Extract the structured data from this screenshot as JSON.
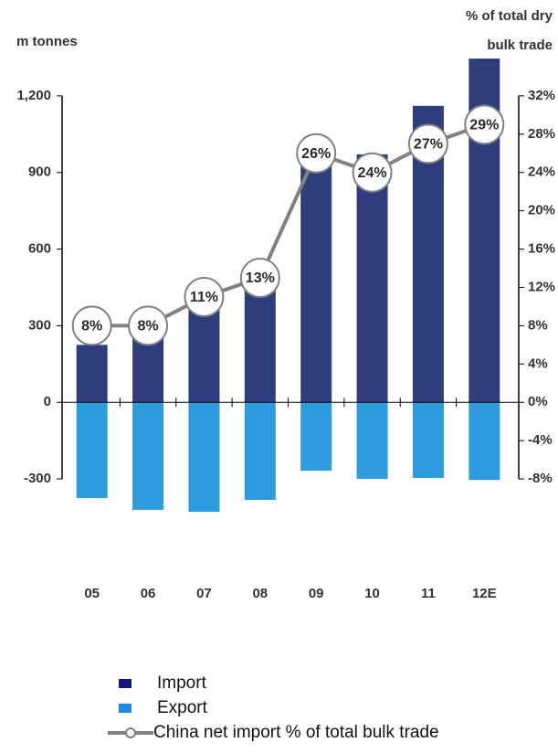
{
  "chart_data": {
    "type": "bar-line",
    "y_label": "m tonnes",
    "y2_label": [
      "% of total dry",
      "bulk trade"
    ],
    "categories": [
      "05",
      "06",
      "07",
      "08",
      "09",
      "10",
      "11",
      "12E"
    ],
    "series": [
      {
        "name": "Import",
        "color": "#2e3d7c",
        "legend_color": "#14147a",
        "values": [
          225,
          307,
          432,
          504,
          979,
          971,
          1161,
          1346
        ]
      },
      {
        "name": "Export",
        "color": "#2e9bdc",
        "legend_color": "#1e88e5",
        "values": [
          -375,
          -421,
          -429,
          -382,
          -268,
          -300,
          -296,
          -304
        ]
      },
      {
        "name": "China net import % of total bulk trade",
        "color": "#808080",
        "axis": "y2",
        "values": [
          8,
          8,
          11,
          13,
          26,
          24,
          27,
          29
        ],
        "value_labels": [
          "8%",
          "8%",
          "11%",
          "13%",
          "26%",
          "24%",
          "27%",
          "29%"
        ]
      }
    ],
    "ylim": [
      -450,
      1350
    ],
    "yticks": [
      -300,
      0,
      300,
      600,
      900,
      {
        "value": 1200,
        "label": "1,200"
      }
    ],
    "y2lim": [
      -12,
      36
    ],
    "y2ticks": [
      {
        "value": -8,
        "label": "-8%"
      },
      {
        "value": -4,
        "label": "-4%"
      },
      {
        "value": 0,
        "label": "0%"
      },
      {
        "value": 4,
        "label": "4%"
      },
      {
        "value": 8,
        "label": "8%"
      },
      {
        "value": 12,
        "label": "12%"
      },
      {
        "value": 16,
        "label": "16%"
      },
      {
        "value": 20,
        "label": "20%"
      },
      {
        "value": 24,
        "label": "24%"
      },
      {
        "value": 28,
        "label": "28%"
      },
      {
        "value": 32,
        "label": "32%"
      }
    ]
  }
}
